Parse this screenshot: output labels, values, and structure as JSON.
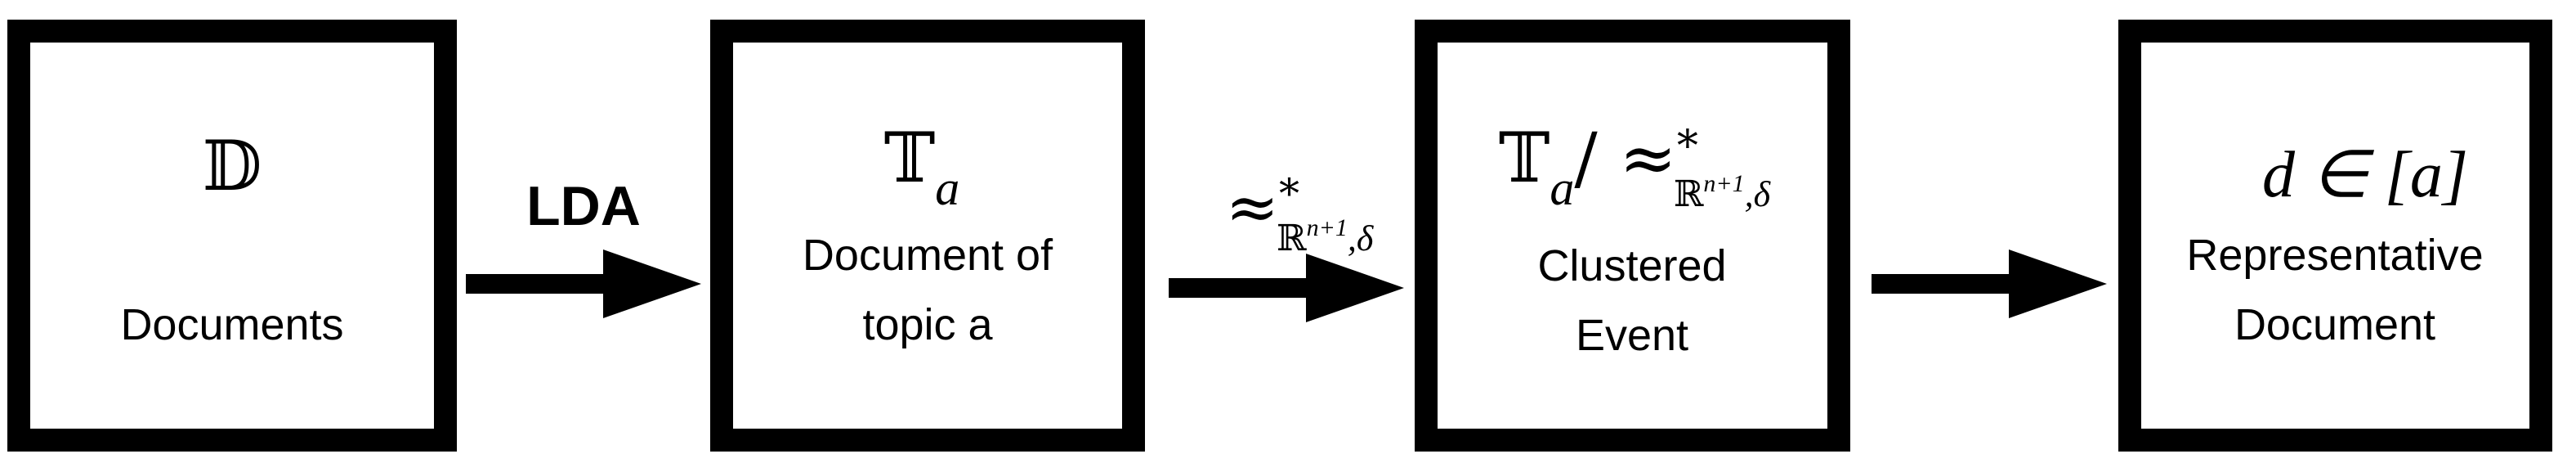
{
  "nodes": [
    {
      "symbol": "𝔻",
      "lines": [
        "Documents"
      ]
    },
    {
      "symbol": "𝕋",
      "subscript": "a",
      "lines": [
        "Document of",
        "topic a"
      ]
    },
    {
      "symbol": "𝕋",
      "subscript": "a",
      "relation": "/ ≈",
      "relation_sup": "*",
      "relation_sub": "ℝ",
      "relation_sub_sup": "n+1",
      "relation_sub_tail": ",δ",
      "lines": [
        "Clustered",
        "Event"
      ]
    },
    {
      "formula": "d ∈ [a]",
      "lines": [
        "Representative",
        "Document"
      ]
    }
  ],
  "edges": [
    {
      "label": "LDA"
    },
    {
      "relation": "≈",
      "relation_sup": "*",
      "relation_sub": "ℝ",
      "relation_sub_sup": "n+1",
      "relation_sub_tail": ",δ"
    },
    {
      "label": ""
    }
  ]
}
